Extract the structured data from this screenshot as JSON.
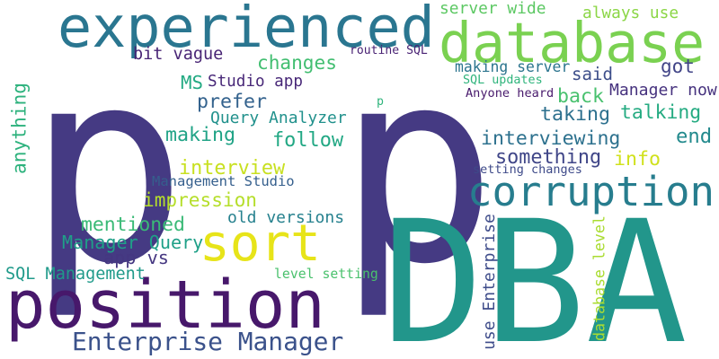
{
  "words": [
    {
      "text": "p",
      "color": "#453a83"
    },
    {
      "text": "p",
      "color": "#453a83"
    },
    {
      "text": "DBA",
      "color": "#22968b"
    },
    {
      "text": "position",
      "color": "#47186b"
    },
    {
      "text": "experienced",
      "color": "#2a7690"
    },
    {
      "text": "database",
      "color": "#7ad151"
    },
    {
      "text": "corruption",
      "color": "#277d8e"
    },
    {
      "text": "sort",
      "color": "#e7e419"
    },
    {
      "text": "Enterprise Manager",
      "color": "#3b528b"
    },
    {
      "text": "server wide",
      "color": "#5cc863"
    },
    {
      "text": "always use",
      "color": "#8bd646"
    },
    {
      "text": "bit vague",
      "color": "#482475"
    },
    {
      "text": "routine SQL",
      "color": "#482173"
    },
    {
      "text": "changes",
      "color": "#42be71"
    },
    {
      "text": "making server",
      "color": "#2b748e"
    },
    {
      "text": "got",
      "color": "#414487"
    },
    {
      "text": "MS",
      "color": "#24aa83"
    },
    {
      "text": "Studio app",
      "color": "#482878"
    },
    {
      "text": "said",
      "color": "#3d4e8a"
    },
    {
      "text": "SQL updates",
      "color": "#2fb47c"
    },
    {
      "text": "Manager now",
      "color": "#46327e"
    },
    {
      "text": "prefer",
      "color": "#33628d"
    },
    {
      "text": "back",
      "color": "#48c16e"
    },
    {
      "text": "Anyone heard",
      "color": "#481a6c"
    },
    {
      "text": "p",
      "color": "#2fb47c"
    },
    {
      "text": "Query Analyzer",
      "color": "#21918c"
    },
    {
      "text": "taking",
      "color": "#2d708e"
    },
    {
      "text": "talking",
      "color": "#25ab82"
    },
    {
      "text": "anything",
      "color": "#2db27d"
    },
    {
      "text": "making",
      "color": "#20a386"
    },
    {
      "text": "follow",
      "color": "#22a884"
    },
    {
      "text": "interviewing",
      "color": "#2d718e"
    },
    {
      "text": "end",
      "color": "#238a8d"
    },
    {
      "text": "something",
      "color": "#404688"
    },
    {
      "text": "info",
      "color": "#d0e11c"
    },
    {
      "text": "interview",
      "color": "#c8e020"
    },
    {
      "text": "setting changes",
      "color": "#3e4a89"
    },
    {
      "text": "Management Studio",
      "color": "#355f8d"
    },
    {
      "text": "impression",
      "color": "#b5de2b"
    },
    {
      "text": "old versions",
      "color": "#26818e"
    },
    {
      "text": "mentioned",
      "color": "#3aba76"
    },
    {
      "text": "use Enterprise",
      "color": "#3e4c8a"
    },
    {
      "text": "database level",
      "color": "#aadc32"
    },
    {
      "text": "Manager Query",
      "color": "#1fa088"
    },
    {
      "text": "app vs",
      "color": "#453781"
    },
    {
      "text": "SQL Management",
      "color": "#1f9a8a"
    },
    {
      "text": "level setting",
      "color": "#4ac16d"
    }
  ]
}
